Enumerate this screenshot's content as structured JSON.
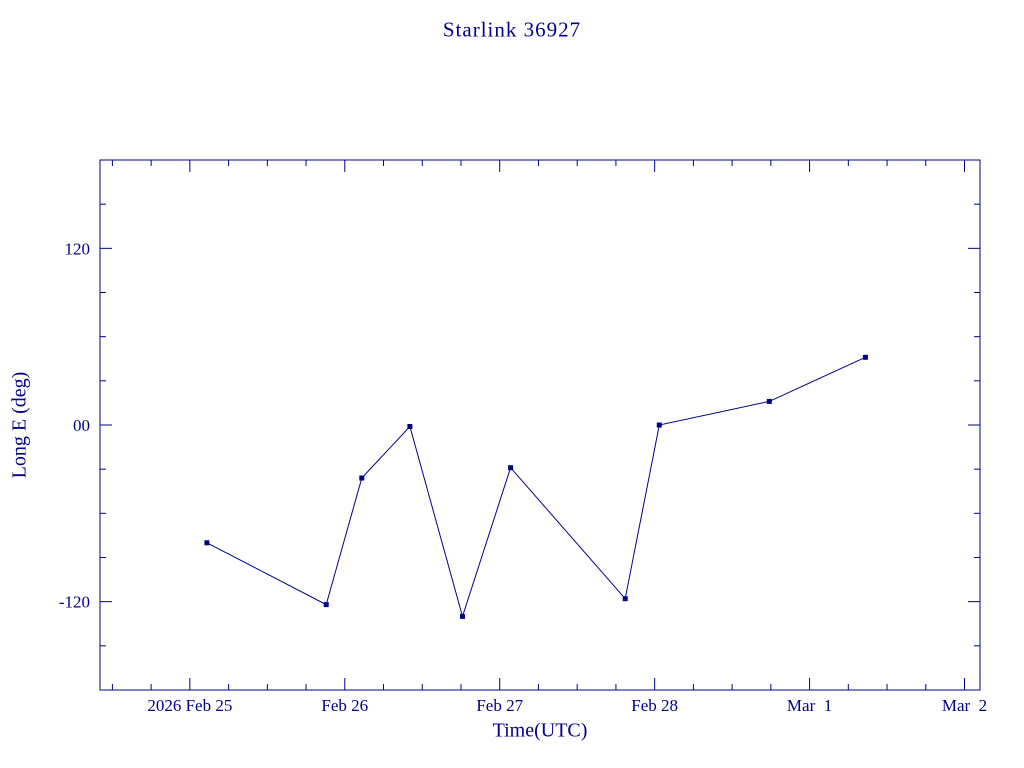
{
  "colors": {
    "accent": "#00008B",
    "background": "#ffffff"
  },
  "chart_data": {
    "type": "line",
    "title": "Starlink 36927",
    "xlabel": "Time(UTC)",
    "ylabel": "Long E (deg)",
    "x_axis_note": "days measured from 2026 Feb 25 00:00 UTC",
    "xlim_days": [
      -0.58,
      5.1
    ],
    "ylim": [
      -180,
      180
    ],
    "x_ticks": [
      {
        "day": 0,
        "label": "2026 Feb 25"
      },
      {
        "day": 1,
        "label": "Feb 26"
      },
      {
        "day": 2,
        "label": "Feb 27"
      },
      {
        "day": 3,
        "label": "Feb 28"
      },
      {
        "day": 4,
        "label": "Mar  1"
      },
      {
        "day": 5,
        "label": "Mar  2"
      }
    ],
    "x_minor_tick_step_days": 0.25,
    "y_ticks": [
      {
        "value": 120,
        "label": "120"
      },
      {
        "value": 0,
        "label": "00"
      },
      {
        "value": -120,
        "label": "-120"
      }
    ],
    "y_minor_tick_step": 30,
    "grid": false,
    "legend": "none",
    "series": [
      {
        "name": "Long E",
        "marker": "square",
        "line_style": "solid",
        "points": [
          {
            "day": 0.11,
            "value": -80
          },
          {
            "day": 0.88,
            "value": -122
          },
          {
            "day": 1.11,
            "value": -36
          },
          {
            "day": 1.42,
            "value": -1
          },
          {
            "day": 1.76,
            "value": -130
          },
          {
            "day": 2.07,
            "value": -29
          },
          {
            "day": 2.81,
            "value": -118
          },
          {
            "day": 3.03,
            "value": 0
          },
          {
            "day": 3.74,
            "value": 16
          },
          {
            "day": 4.36,
            "value": 46
          }
        ]
      }
    ]
  }
}
